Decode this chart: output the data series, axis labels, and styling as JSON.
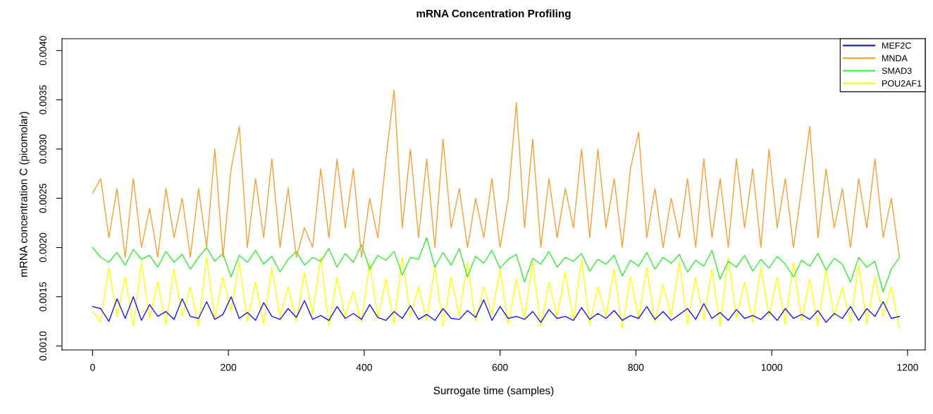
{
  "chart_data": {
    "type": "line",
    "title": "mRNA Concentration Profiling",
    "xlabel": "Surrogate time (samples)",
    "ylabel": "mRNA concentration C (picomolar)",
    "x": [
      0,
      12,
      24,
      36,
      48,
      60,
      72,
      84,
      96,
      108,
      120,
      132,
      144,
      156,
      168,
      180,
      192,
      204,
      216,
      228,
      240,
      252,
      264,
      276,
      288,
      300,
      312,
      324,
      336,
      348,
      360,
      372,
      384,
      396,
      408,
      420,
      432,
      444,
      456,
      468,
      480,
      492,
      504,
      516,
      528,
      540,
      552,
      564,
      576,
      588,
      600,
      612,
      624,
      636,
      648,
      660,
      672,
      684,
      696,
      708,
      720,
      732,
      744,
      756,
      768,
      780,
      792,
      804,
      816,
      828,
      840,
      852,
      864,
      876,
      888,
      900,
      912,
      924,
      936,
      948,
      960,
      972,
      984,
      996,
      1008,
      1020,
      1032,
      1044,
      1056,
      1068,
      1080,
      1092,
      1104,
      1116,
      1128,
      1140,
      1152,
      1164,
      1176,
      1188
    ],
    "series": [
      {
        "name": "MEF2C",
        "color": "#1a1ae6",
        "values": [
          0.0014,
          0.00138,
          0.00125,
          0.00148,
          0.00128,
          0.0015,
          0.00126,
          0.00142,
          0.0013,
          0.00135,
          0.00127,
          0.00148,
          0.0013,
          0.00128,
          0.00145,
          0.00127,
          0.00132,
          0.0015,
          0.00128,
          0.00134,
          0.00126,
          0.00144,
          0.0013,
          0.00127,
          0.00138,
          0.00129,
          0.00146,
          0.00127,
          0.00131,
          0.00126,
          0.0014,
          0.00128,
          0.00133,
          0.00127,
          0.00142,
          0.00129,
          0.00126,
          0.00135,
          0.00128,
          0.00141,
          0.00127,
          0.00132,
          0.00126,
          0.00138,
          0.00128,
          0.00127,
          0.00136,
          0.00129,
          0.00147,
          0.00126,
          0.0014,
          0.00128,
          0.0013,
          0.00127,
          0.00135,
          0.00124,
          0.00137,
          0.00128,
          0.0013,
          0.00126,
          0.00139,
          0.00127,
          0.00133,
          0.00128,
          0.00136,
          0.00126,
          0.00131,
          0.00128,
          0.0014,
          0.00127,
          0.00135,
          0.00126,
          0.00132,
          0.00138,
          0.00127,
          0.00143,
          0.00128,
          0.00134,
          0.00126,
          0.00137,
          0.00128,
          0.00131,
          0.00127,
          0.00135,
          0.00126,
          0.00138,
          0.00128,
          0.00132,
          0.00127,
          0.00136,
          0.00124,
          0.00133,
          0.00128,
          0.0014,
          0.00126,
          0.00138,
          0.0013,
          0.00145,
          0.00128,
          0.0013
        ]
      },
      {
        "name": "MNDA",
        "color": "#f5a033",
        "values": [
          0.00255,
          0.0027,
          0.0021,
          0.0026,
          0.0019,
          0.0027,
          0.002,
          0.0024,
          0.0019,
          0.0026,
          0.0021,
          0.0025,
          0.0019,
          0.0026,
          0.002,
          0.003,
          0.0019,
          0.0028,
          0.00323,
          0.002,
          0.0027,
          0.0021,
          0.0029,
          0.002,
          0.0026,
          0.0019,
          0.0022,
          0.002,
          0.0028,
          0.0021,
          0.0029,
          0.0022,
          0.0028,
          0.0019,
          0.0025,
          0.0021,
          0.0029,
          0.0036,
          0.0022,
          0.003,
          0.0021,
          0.0029,
          0.002,
          0.0031,
          0.0022,
          0.0026,
          0.002,
          0.0025,
          0.0021,
          0.0027,
          0.002,
          0.0025,
          0.00347,
          0.0022,
          0.0031,
          0.002,
          0.0027,
          0.0021,
          0.0026,
          0.0022,
          0.003,
          0.0021,
          0.003,
          0.0022,
          0.0027,
          0.002,
          0.0028,
          0.00317,
          0.0021,
          0.0026,
          0.002,
          0.0025,
          0.0021,
          0.0027,
          0.002,
          0.0029,
          0.0021,
          0.0027,
          0.002,
          0.0029,
          0.0022,
          0.0028,
          0.002,
          0.003,
          0.0022,
          0.0027,
          0.002,
          0.0026,
          0.00323,
          0.0021,
          0.0028,
          0.0022,
          0.0026,
          0.002,
          0.0027,
          0.0022,
          0.0029,
          0.0021,
          0.0025,
          0.0019
        ]
      },
      {
        "name": "SMAD3",
        "color": "#33ee33",
        "values": [
          0.002,
          0.0019,
          0.00185,
          0.00195,
          0.00182,
          0.00198,
          0.00188,
          0.00192,
          0.0018,
          0.00196,
          0.00185,
          0.00193,
          0.00178,
          0.0019,
          0.002,
          0.00186,
          0.00194,
          0.0017,
          0.00192,
          0.00185,
          0.00197,
          0.00183,
          0.00191,
          0.00175,
          0.00188,
          0.00196,
          0.00182,
          0.0019,
          0.00186,
          0.00199,
          0.0018,
          0.00194,
          0.00185,
          0.00203,
          0.00178,
          0.00192,
          0.00187,
          0.00196,
          0.00172,
          0.0019,
          0.00188,
          0.0021,
          0.0018,
          0.00195,
          0.00182,
          0.00199,
          0.0017,
          0.00191,
          0.00184,
          0.00197,
          0.00179,
          0.00188,
          0.00193,
          0.00165,
          0.00189,
          0.00183,
          0.00196,
          0.0018,
          0.0019,
          0.00186,
          0.00194,
          0.00176,
          0.00188,
          0.00183,
          0.00192,
          0.00171,
          0.00187,
          0.00181,
          0.00195,
          0.00178,
          0.0019,
          0.00184,
          0.00193,
          0.00175,
          0.00187,
          0.00181,
          0.00197,
          0.00168,
          0.00186,
          0.0018,
          0.00192,
          0.00176,
          0.00188,
          0.00179,
          0.00191,
          0.00183,
          0.0017,
          0.00187,
          0.00181,
          0.00194,
          0.00177,
          0.00189,
          0.00183,
          0.00165,
          0.0019,
          0.0018,
          0.00186,
          0.00155,
          0.00178,
          0.0019
        ]
      },
      {
        "name": "POU2AF1",
        "color": "#ffff00",
        "values": [
          0.00135,
          0.00125,
          0.0018,
          0.0013,
          0.0017,
          0.0012,
          0.00185,
          0.00128,
          0.00165,
          0.00122,
          0.00178,
          0.0013,
          0.0016,
          0.0012,
          0.0019,
          0.00127,
          0.0017,
          0.00135,
          0.00185,
          0.00125,
          0.00165,
          0.00122,
          0.0018,
          0.0013,
          0.0016,
          0.00125,
          0.00175,
          0.00132,
          0.0019,
          0.0012,
          0.0017,
          0.0013,
          0.00155,
          0.00124,
          0.00185,
          0.00128,
          0.00168,
          0.00122,
          0.0019,
          0.0013,
          0.0016,
          0.00126,
          0.0018,
          0.0012,
          0.0017,
          0.0013,
          0.00185,
          0.00125,
          0.0016,
          0.00132,
          0.00178,
          0.00122,
          0.00168,
          0.00128,
          0.00185,
          0.0012,
          0.00165,
          0.0013,
          0.00175,
          0.00126,
          0.00188,
          0.00122,
          0.0016,
          0.0013,
          0.00178,
          0.00118,
          0.0017,
          0.00128,
          0.0018,
          0.00124,
          0.00162,
          0.0013,
          0.00185,
          0.00122,
          0.0017,
          0.00127,
          0.00178,
          0.0012,
          0.0019,
          0.00128,
          0.00165,
          0.00124,
          0.0018,
          0.0013,
          0.0017,
          0.00122,
          0.00185,
          0.00126,
          0.00168,
          0.0012,
          0.00178,
          0.0013,
          0.0016,
          0.00124,
          0.00182,
          0.00122,
          0.0017,
          0.0013,
          0.0016,
          0.00118
        ]
      }
    ],
    "xlim": [
      -45,
      1226
    ],
    "ylim": [
      0.00096,
      0.00412
    ],
    "xticks": [
      0,
      200,
      400,
      600,
      800,
      1000,
      1200
    ],
    "yticks": [
      {
        "value": 0.001,
        "label": "0.0010"
      },
      {
        "value": 0.0015,
        "label": "0.0015"
      },
      {
        "value": 0.002,
        "label": "0.0020"
      },
      {
        "value": 0.0025,
        "label": "0.0025"
      },
      {
        "value": 0.003,
        "label": "0.0030"
      },
      {
        "value": 0.0035,
        "label": "0.0035"
      },
      {
        "value": 0.004,
        "label": "0.0040"
      }
    ],
    "grid": false,
    "legend": "top right",
    "marker": "none",
    "line_style": "solid"
  }
}
